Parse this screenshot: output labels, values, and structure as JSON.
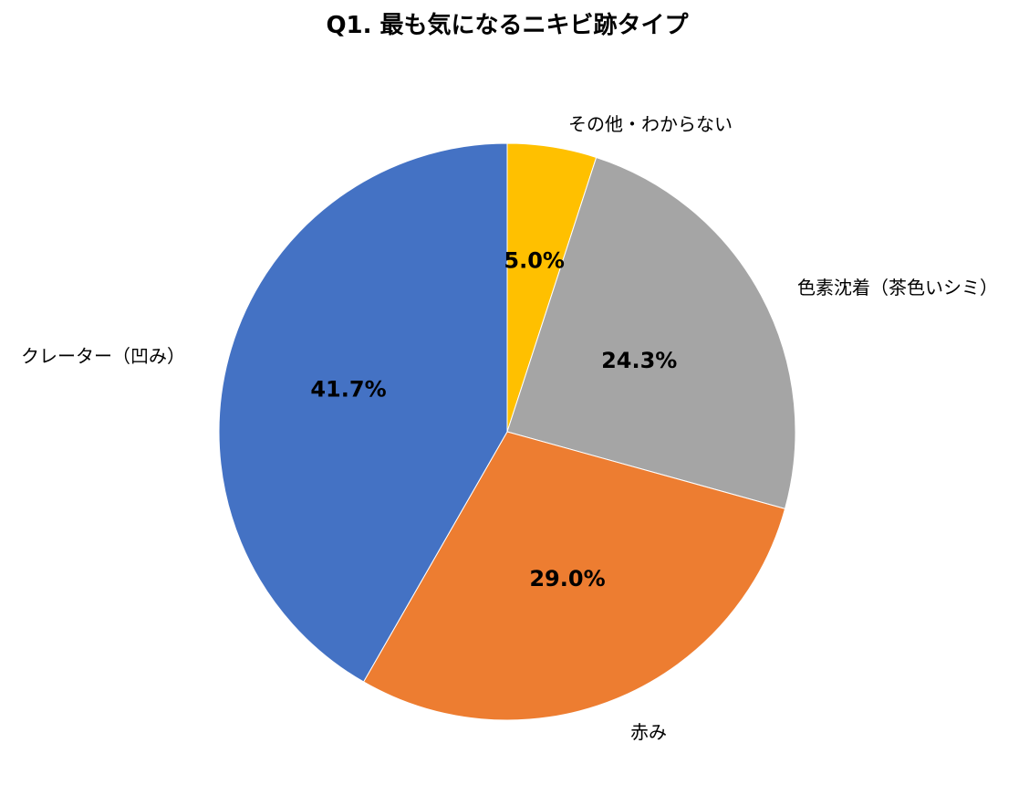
{
  "chart_data": {
    "type": "pie",
    "title": "Q1. 最も気になるニキビ跡タイプ",
    "start_angle_deg": 0,
    "direction": "clockwise",
    "legend": "none",
    "slices": [
      {
        "label": "その他・わからない",
        "value": 5.0,
        "value_label": "5.0%",
        "color": "#FFC000"
      },
      {
        "label": "色素沈着（茶色いシミ）",
        "value": 24.3,
        "value_label": "24.3%",
        "color": "#A5A5A5"
      },
      {
        "label": "赤み",
        "value": 29.0,
        "value_label": "29.0%",
        "color": "#ED7D31"
      },
      {
        "label": "クレーター（凹み）",
        "value": 41.7,
        "value_label": "41.7%",
        "color": "#4472C4"
      }
    ]
  }
}
